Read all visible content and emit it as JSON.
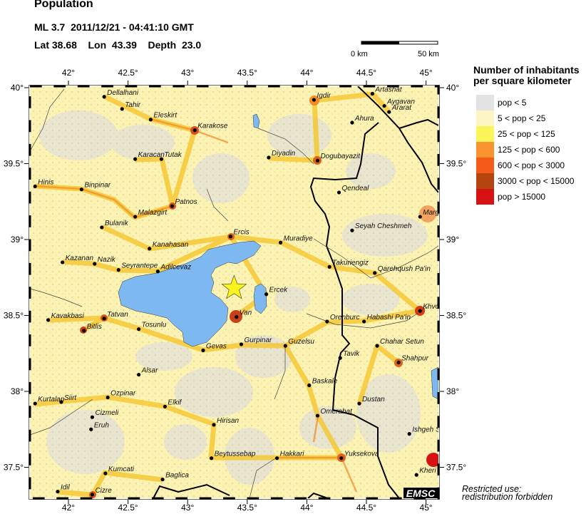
{
  "header": {
    "title": "Population",
    "event_line": "ML 3.7  2011/12/21 - 04:41:10 GMT",
    "location_line": "Lat 38.68    Lon  43.39    Depth  23.0"
  },
  "scale_bar": {
    "start_label": "0 km",
    "end_label": "50 km"
  },
  "epicenter": {
    "lon": 43.39,
    "lat": 38.68,
    "color": "#f8f41c"
  },
  "axes": {
    "lon_ticks": [
      {
        "v": 42,
        "label": "42°"
      },
      {
        "v": 42.5,
        "label": "42.5°"
      },
      {
        "v": 43,
        "label": "43°"
      },
      {
        "v": 43.5,
        "label": "43.5°"
      },
      {
        "v": 44,
        "label": "44°"
      },
      {
        "v": 44.5,
        "label": "44.5°"
      },
      {
        "v": 45,
        "label": "45°"
      }
    ],
    "lat_ticks": [
      {
        "v": 40,
        "label": "40°"
      },
      {
        "v": 39.5,
        "label": "39.5°"
      },
      {
        "v": 39,
        "label": "39°"
      },
      {
        "v": 38.5,
        "label": "38.5°"
      },
      {
        "v": 38,
        "label": "38°"
      },
      {
        "v": 37.5,
        "label": "37.5°"
      }
    ]
  },
  "legend": {
    "title_line1": "Number of inhabitants",
    "title_line2": "per square kilometer",
    "items": [
      {
        "label": "pop < 5",
        "color": "#e3e3e3"
      },
      {
        "label": "5 < pop < 25",
        "color": "#fbf6c4"
      },
      {
        "label": "25 < pop < 125",
        "color": "#faf65a"
      },
      {
        "label": "125 < pop < 600",
        "color": "#f8932f"
      },
      {
        "label": "600 < pop < 3000",
        "color": "#f65a18"
      },
      {
        "label": "3000 < pop < 15000",
        "color": "#b5450f"
      },
      {
        "label": "pop > 15000",
        "color": "#d61212"
      }
    ]
  },
  "cities": [
    {
      "name": "Dellalhani",
      "lon": 42.3,
      "lat": 39.94
    },
    {
      "name": "Tahir",
      "lon": 42.45,
      "lat": 39.86
    },
    {
      "name": "Eleskirt",
      "lon": 42.69,
      "lat": 39.79
    },
    {
      "name": "Karakose",
      "lon": 43.06,
      "lat": 39.72
    },
    {
      "name": "Karacan",
      "lon": 42.56,
      "lat": 39.53
    },
    {
      "name": "Tutak",
      "lon": 42.78,
      "lat": 39.53
    },
    {
      "name": "Hinis",
      "lon": 41.72,
      "lat": 39.35
    },
    {
      "name": "Binpinar",
      "lon": 42.11,
      "lat": 39.33
    },
    {
      "name": "Patnos",
      "lon": 42.87,
      "lat": 39.22
    },
    {
      "name": "Malazgirt",
      "lon": 42.56,
      "lat": 39.15
    },
    {
      "name": "Bulanik",
      "lon": 42.28,
      "lat": 39.08
    },
    {
      "name": "Kanahasan",
      "lon": 42.68,
      "lat": 38.94
    },
    {
      "name": "Kazanan",
      "lon": 41.95,
      "lat": 38.85
    },
    {
      "name": "Nazik",
      "lon": 42.22,
      "lat": 38.84
    },
    {
      "name": "Seyrantepe",
      "lon": 42.42,
      "lat": 38.8
    },
    {
      "name": "Adilcevaz",
      "lon": 42.75,
      "lat": 38.79
    },
    {
      "name": "Ercis",
      "lon": 43.36,
      "lat": 39.02
    },
    {
      "name": "Muradiye",
      "lon": 43.78,
      "lat": 38.98
    },
    {
      "name": "Takuriengiz",
      "lon": 44.19,
      "lat": 38.82
    },
    {
      "name": "Qarehqush Pa'in",
      "lon": 44.57,
      "lat": 38.78
    },
    {
      "name": "Seyah Cheshmeh",
      "lon": 44.38,
      "lat": 39.06
    },
    {
      "name": "Ercek",
      "lon": 43.66,
      "lat": 38.64
    },
    {
      "name": "Van",
      "lon": 43.41,
      "lat": 38.49
    },
    {
      "name": "Orenburc",
      "lon": 44.17,
      "lat": 38.46
    },
    {
      "name": "Habashi Pa'in",
      "lon": 44.48,
      "lat": 38.46
    },
    {
      "name": "Khvo",
      "lon": 44.95,
      "lat": 38.53
    },
    {
      "name": "Kavakbasi",
      "lon": 41.83,
      "lat": 38.47
    },
    {
      "name": "Tatvan",
      "lon": 42.3,
      "lat": 38.48
    },
    {
      "name": "Bitlis",
      "lon": 42.13,
      "lat": 38.4
    },
    {
      "name": "Tosunlu",
      "lon": 42.59,
      "lat": 38.41
    },
    {
      "name": "Gevas",
      "lon": 43.13,
      "lat": 38.27
    },
    {
      "name": "Gurpinar",
      "lon": 43.45,
      "lat": 38.31
    },
    {
      "name": "Guzelsu",
      "lon": 43.82,
      "lat": 38.3
    },
    {
      "name": "Chahar Setun",
      "lon": 44.59,
      "lat": 38.3
    },
    {
      "name": "Tavik",
      "lon": 44.28,
      "lat": 38.22
    },
    {
      "name": "Shahpur",
      "lon": 44.77,
      "lat": 38.19
    },
    {
      "name": "Alsar",
      "lon": 42.59,
      "lat": 38.11
    },
    {
      "name": "Baskale",
      "lon": 44.02,
      "lat": 38.04
    },
    {
      "name": "Dustan",
      "lon": 44.44,
      "lat": 37.92
    },
    {
      "name": "Ozpinar",
      "lon": 42.33,
      "lat": 37.96
    },
    {
      "name": "Kurtalan",
      "lon": 41.72,
      "lat": 37.92
    },
    {
      "name": "Siirt",
      "lon": 41.94,
      "lat": 37.93
    },
    {
      "name": "Elkif",
      "lon": 42.81,
      "lat": 37.9
    },
    {
      "name": "Omerabat",
      "lon": 44.09,
      "lat": 37.84
    },
    {
      "name": "Cizmeli",
      "lon": 42.2,
      "lat": 37.83
    },
    {
      "name": "Eruh",
      "lon": 42.19,
      "lat": 37.75
    },
    {
      "name": "Hirisan",
      "lon": 43.22,
      "lat": 37.78
    },
    {
      "name": "Ishgeh S",
      "lon": 44.86,
      "lat": 37.72
    },
    {
      "name": "Beytussebap",
      "lon": 43.2,
      "lat": 37.56
    },
    {
      "name": "Hakkari",
      "lon": 43.75,
      "lat": 37.56
    },
    {
      "name": "Yuksekova",
      "lon": 44.29,
      "lat": 37.56
    },
    {
      "name": "Kumcati",
      "lon": 42.31,
      "lat": 37.46
    },
    {
      "name": "Baglica",
      "lon": 42.79,
      "lat": 37.42
    },
    {
      "name": "Kheri",
      "lon": 44.92,
      "lat": 37.45
    },
    {
      "name": "Cizre",
      "lon": 42.2,
      "lat": 37.32
    },
    {
      "name": "Idil",
      "lon": 41.91,
      "lat": 37.34
    },
    {
      "name": "Igdir",
      "lon": 44.06,
      "lat": 39.92
    },
    {
      "name": "Artashat",
      "lon": 44.55,
      "lat": 39.96
    },
    {
      "name": "Aygavan",
      "lon": 44.65,
      "lat": 39.88
    },
    {
      "name": "Ararat",
      "lon": 44.69,
      "lat": 39.84
    },
    {
      "name": "Ahura",
      "lon": 44.38,
      "lat": 39.77
    },
    {
      "name": "Diyadin",
      "lon": 43.68,
      "lat": 39.54
    },
    {
      "name": "Dogubayazit",
      "lon": 44.09,
      "lat": 39.52
    },
    {
      "name": "Qendeal",
      "lon": 44.27,
      "lat": 39.31
    },
    {
      "name": "Marg",
      "lon": 44.95,
      "lat": 39.15
    }
  ],
  "logo": "EMSC",
  "notice_line1": "Restricted use:",
  "notice_line2": "redistribution forbidden"
}
